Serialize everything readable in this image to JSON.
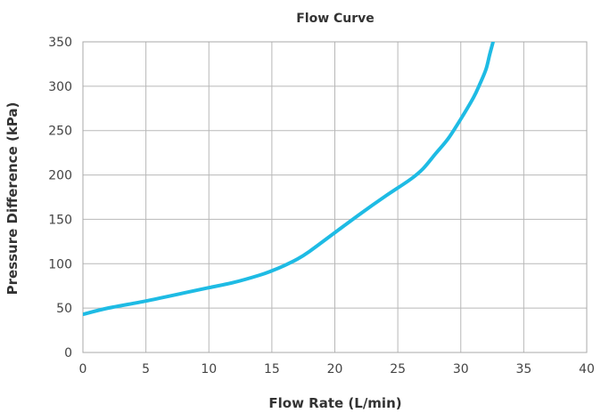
{
  "chart_data": {
    "type": "line",
    "title": "Flow Curve",
    "xlabel": "Flow Rate (L/min)",
    "ylabel": "Pressure Difference (kPa)",
    "xlim": [
      0,
      40
    ],
    "ylim": [
      0,
      350
    ],
    "xticks": [
      0,
      5,
      10,
      15,
      20,
      25,
      30,
      35,
      40
    ],
    "yticks": [
      0,
      50,
      100,
      150,
      200,
      250,
      300,
      350
    ],
    "grid": true,
    "line_color": "#1ebbe4",
    "series": [
      {
        "x": [
          0,
          2,
          5,
          8,
          10,
          12,
          14,
          15,
          16,
          17,
          18,
          20,
          22,
          24,
          26,
          27,
          28,
          29,
          30,
          31,
          31.5,
          32,
          32.3,
          32.6,
          32.8
        ],
        "y": [
          43,
          50,
          58,
          67,
          73,
          79,
          87,
          92,
          98,
          105,
          114,
          135,
          156,
          176,
          195,
          207,
          224,
          241,
          263,
          287,
          302,
          319,
          336,
          352,
          365
        ]
      }
    ]
  }
}
